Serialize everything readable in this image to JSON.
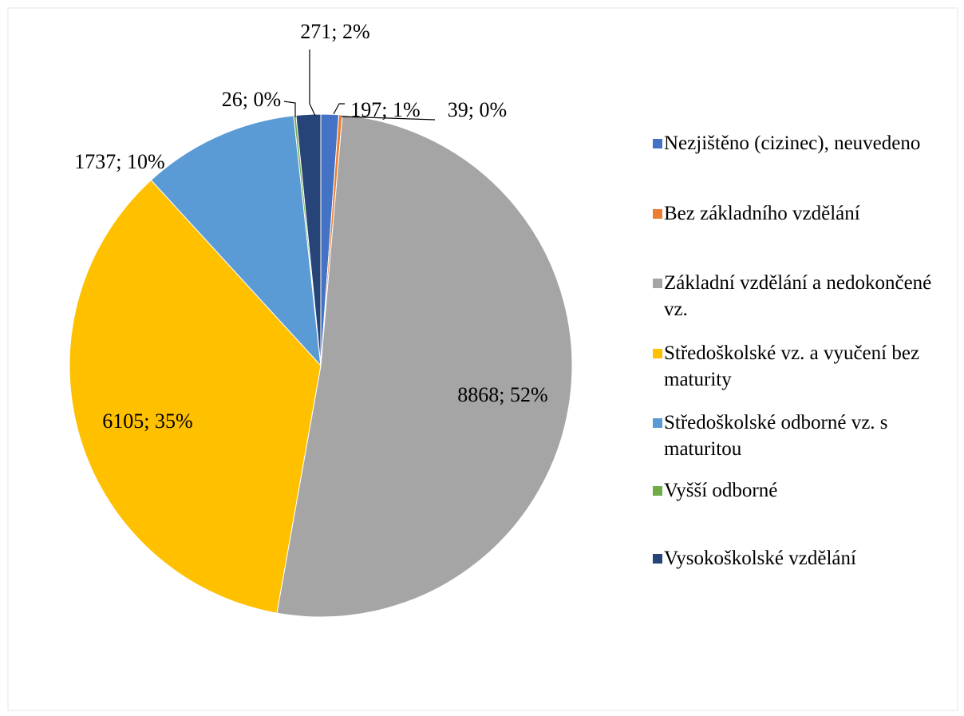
{
  "chart_data": {
    "type": "pie",
    "categories": [
      "Nezjištěno (cizinec), neuvedeno",
      "Bez základního vzdělání",
      "Základní vzdělání a nedokončené vz.",
      "Středoškolské vz. a vyučení bez maturity",
      "Středoškolské odborné vz. s maturitou",
      "Vyšší odborné",
      "Vysokoškolské vzdělání"
    ],
    "values": [
      197,
      39,
      8868,
      6105,
      1737,
      26,
      271
    ],
    "value_labels": [
      "197; 1%",
      "39; 0%",
      "8868; 52%",
      "6105; 35%",
      "1737; 10%",
      "26; 0%",
      "271; 2%"
    ],
    "colors": [
      "#4472c4",
      "#ed7d31",
      "#a5a5a5",
      "#ffc000",
      "#5b9bd5",
      "#70ad47",
      "#264478"
    ],
    "legend": "right"
  }
}
